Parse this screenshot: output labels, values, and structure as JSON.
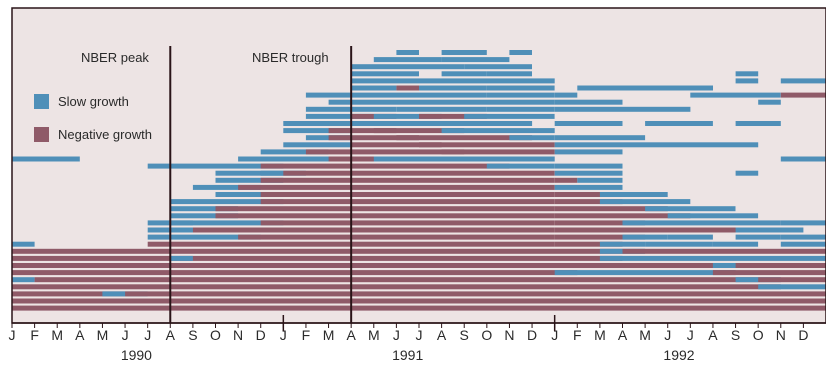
{
  "chart_data": {
    "type": "heatmap",
    "colors": {
      "background": "#ede4e4",
      "slow_growth": "#4f8fb8",
      "negative_growth": "#8f5a68",
      "lines": "#2a1418"
    },
    "legend": [
      {
        "key": "slow",
        "label": "Slow growth"
      },
      {
        "key": "negative",
        "label": "Negative growth"
      }
    ],
    "legend_position": "top-left",
    "annotations": [
      {
        "label": "NBER peak",
        "month": "1990-07"
      },
      {
        "label": "NBER trough",
        "month": "1991-03"
      }
    ],
    "month_ticks": [
      "J",
      "F",
      "M",
      "A",
      "M",
      "J",
      "J",
      "A",
      "S",
      "O",
      "N",
      "D",
      "J",
      "F",
      "M",
      "A",
      "M",
      "J",
      "J",
      "A",
      "S",
      "O",
      "N",
      "D",
      "J",
      "F",
      "M",
      "A",
      "M",
      "J",
      "J",
      "A",
      "S",
      "O",
      "N",
      "D"
    ],
    "year_labels": [
      {
        "label": "1990",
        "month": "1990-06"
      },
      {
        "label": "1991",
        "month": "1991-06"
      },
      {
        "label": "1992",
        "month": "1992-06"
      }
    ],
    "x_range": [
      "1990-01",
      "1992-12"
    ],
    "rows": [
      {
        "segments": [
          [
            "slow",
            "1991-06",
            "1991-06"
          ],
          [
            "slow",
            "1991-08",
            "1991-09"
          ],
          [
            "slow",
            "1991-11",
            "1991-11"
          ]
        ]
      },
      {
        "segments": [
          [
            "slow",
            "1991-05",
            "1991-07"
          ],
          [
            "slow",
            "1991-08",
            "1991-10"
          ]
        ]
      },
      {
        "segments": [
          [
            "slow",
            "1991-04",
            "1991-06"
          ],
          [
            "slow",
            "1991-07",
            "1991-08"
          ],
          [
            "slow",
            "1991-09",
            "1991-11"
          ]
        ]
      },
      {
        "segments": [
          [
            "slow",
            "1991-04",
            "1991-06"
          ],
          [
            "slow",
            "1991-08",
            "1991-09"
          ],
          [
            "slow",
            "1991-10",
            "1991-11"
          ],
          [
            "slow",
            "1992-09",
            "1992-09"
          ]
        ]
      },
      {
        "segments": [
          [
            "slow",
            "1991-04",
            "1991-06"
          ],
          [
            "slow",
            "1991-07",
            "1991-12"
          ],
          [
            "slow",
            "1992-09",
            "1992-09"
          ],
          [
            "slow",
            "1992-11",
            "1992-12"
          ]
        ]
      },
      {
        "segments": [
          [
            "slow",
            "1991-04",
            "1991-05"
          ],
          [
            "negative",
            "1991-06",
            "1991-06"
          ],
          [
            "slow",
            "1991-07",
            "1991-09"
          ],
          [
            "slow",
            "1991-10",
            "1991-12"
          ],
          [
            "slow",
            "1992-02",
            "1992-07"
          ]
        ]
      },
      {
        "segments": [
          [
            "slow",
            "1991-02",
            "1991-06"
          ],
          [
            "slow",
            "1991-07",
            "1991-09"
          ],
          [
            "slow",
            "1991-10",
            "1991-12"
          ],
          [
            "slow",
            "1992-01",
            "1992-01"
          ],
          [
            "slow",
            "1992-07",
            "1992-10"
          ],
          [
            "negative",
            "1992-11",
            "1992-12"
          ]
        ]
      },
      {
        "segments": [
          [
            "slow",
            "1991-03",
            "1991-06"
          ],
          [
            "slow",
            "1991-07",
            "1991-12"
          ],
          [
            "slow",
            "1992-01",
            "1992-03"
          ],
          [
            "slow",
            "1992-10",
            "1992-10"
          ]
        ]
      },
      {
        "segments": [
          [
            "slow",
            "1991-02",
            "1991-05"
          ],
          [
            "slow",
            "1991-06",
            "1991-09"
          ],
          [
            "slow",
            "1991-10",
            "1991-12"
          ],
          [
            "slow",
            "1992-01",
            "1992-06"
          ]
        ]
      },
      {
        "segments": [
          [
            "slow",
            "1991-02",
            "1991-04"
          ],
          [
            "negative",
            "1991-04",
            "1991-05"
          ],
          [
            "slow",
            "1991-05",
            "1991-07"
          ],
          [
            "negative",
            "1991-07",
            "1991-09"
          ],
          [
            "slow",
            "1991-09",
            "1991-12"
          ]
        ]
      },
      {
        "segments": [
          [
            "slow",
            "1991-01",
            "1991-03"
          ],
          [
            "slow",
            "1991-03",
            "1991-06"
          ],
          [
            "slow",
            "1991-06",
            "1991-11"
          ],
          [
            "slow",
            "1992-01",
            "1992-03"
          ],
          [
            "slow",
            "1992-05",
            "1992-07"
          ],
          [
            "slow",
            "1992-09",
            "1992-10"
          ]
        ]
      },
      {
        "segments": [
          [
            "slow",
            "1991-01",
            "1991-03"
          ],
          [
            "negative",
            "1991-03",
            "1991-05"
          ],
          [
            "negative",
            "1991-05",
            "1991-08"
          ],
          [
            "slow",
            "1991-08",
            "1991-12"
          ]
        ]
      },
      {
        "segments": [
          [
            "slow",
            "1991-02",
            "1991-03"
          ],
          [
            "negative",
            "1991-03",
            "1991-06"
          ],
          [
            "negative",
            "1991-06",
            "1991-11"
          ],
          [
            "slow",
            "1991-11",
            "1991-12"
          ],
          [
            "slow",
            "1992-01",
            "1992-04"
          ]
        ]
      },
      {
        "segments": [
          [
            "slow",
            "1991-01",
            "1991-03"
          ],
          [
            "negative",
            "1991-04",
            "1991-07"
          ],
          [
            "negative",
            "1991-07",
            "1991-12"
          ],
          [
            "slow",
            "1992-01",
            "1992-09"
          ]
        ]
      },
      {
        "segments": [
          [
            "slow",
            "1990-12",
            "1991-02"
          ],
          [
            "negative",
            "1991-02",
            "1991-08"
          ],
          [
            "negative",
            "1991-08",
            "1991-12"
          ],
          [
            "slow",
            "1992-01",
            "1992-03"
          ]
        ]
      },
      {
        "segments": [
          [
            "slow",
            "1990-01",
            "1990-03"
          ],
          [
            "slow",
            "1990-11",
            "1991-03"
          ],
          [
            "negative",
            "1991-03",
            "1991-05"
          ],
          [
            "slow",
            "1991-05",
            "1991-12"
          ],
          [
            "slow",
            "1992-11",
            "1992-12"
          ]
        ]
      },
      {
        "segments": [
          [
            "slow",
            "1990-07",
            "1990-12"
          ],
          [
            "negative",
            "1990-12",
            "1991-10"
          ],
          [
            "slow",
            "1991-10",
            "1991-12"
          ],
          [
            "slow",
            "1992-01",
            "1992-03"
          ]
        ]
      },
      {
        "segments": [
          [
            "slow",
            "1990-10",
            "1990-12"
          ],
          [
            "slow",
            "1990-12",
            "1991-01"
          ],
          [
            "negative",
            "1991-01",
            "1991-12"
          ],
          [
            "slow",
            "1992-01",
            "1992-03"
          ],
          [
            "slow",
            "1992-09",
            "1992-09"
          ]
        ]
      },
      {
        "segments": [
          [
            "slow",
            "1990-10",
            "1990-12"
          ],
          [
            "negative",
            "1990-12",
            "1991-12"
          ],
          [
            "negative",
            "1992-01",
            "1992-01"
          ],
          [
            "slow",
            "1992-02",
            "1992-03"
          ]
        ]
      },
      {
        "segments": [
          [
            "slow",
            "1990-09",
            "1990-11"
          ],
          [
            "negative",
            "1990-11",
            "1991-12"
          ],
          [
            "slow",
            "1992-01",
            "1992-03"
          ]
        ]
      },
      {
        "segments": [
          [
            "slow",
            "1990-10",
            "1990-12"
          ],
          [
            "negative",
            "1990-12",
            "1991-12"
          ],
          [
            "negative",
            "1992-01",
            "1992-03"
          ],
          [
            "slow",
            "1992-03",
            "1992-05"
          ]
        ]
      },
      {
        "segments": [
          [
            "slow",
            "1990-08",
            "1990-12"
          ],
          [
            "negative",
            "1990-12",
            "1991-12"
          ],
          [
            "negative",
            "1992-01",
            "1992-03"
          ],
          [
            "slow",
            "1992-03",
            "1992-06"
          ]
        ]
      },
      {
        "segments": [
          [
            "slow",
            "1990-08",
            "1990-10"
          ],
          [
            "negative",
            "1990-10",
            "1991-12"
          ],
          [
            "negative",
            "1992-01",
            "1992-05"
          ],
          [
            "slow",
            "1992-05",
            "1992-08"
          ]
        ]
      },
      {
        "segments": [
          [
            "slow",
            "1990-08",
            "1990-10"
          ],
          [
            "negative",
            "1990-10",
            "1991-12"
          ],
          [
            "negative",
            "1992-01",
            "1992-06"
          ],
          [
            "slow",
            "1992-06",
            "1992-09"
          ]
        ]
      },
      {
        "segments": [
          [
            "slow",
            "1990-07",
            "1990-08"
          ],
          [
            "slow",
            "1990-08",
            "1990-12"
          ],
          [
            "negative",
            "1990-12",
            "1991-12"
          ],
          [
            "negative",
            "1992-01",
            "1992-04"
          ],
          [
            "slow",
            "1992-04",
            "1992-10"
          ],
          [
            "slow",
            "1992-11",
            "1992-12"
          ]
        ]
      },
      {
        "segments": [
          [
            "slow",
            "1990-07",
            "1990-09"
          ],
          [
            "negative",
            "1990-09",
            "1991-12"
          ],
          [
            "negative",
            "1992-01",
            "1992-09"
          ],
          [
            "slow",
            "1992-09",
            "1992-11"
          ]
        ]
      },
      {
        "segments": [
          [
            "slow",
            "1990-07",
            "1990-11"
          ],
          [
            "negative",
            "1990-11",
            "1991-12"
          ],
          [
            "negative",
            "1992-01",
            "1992-04"
          ],
          [
            "slow",
            "1992-04",
            "1992-05"
          ],
          [
            "slow",
            "1992-06",
            "1992-07"
          ],
          [
            "slow",
            "1992-09",
            "1992-10"
          ],
          [
            "slow",
            "1992-11",
            "1992-12"
          ]
        ]
      },
      {
        "segments": [
          [
            "slow",
            "1990-01",
            "1990-01"
          ],
          [
            "negative",
            "1990-07",
            "1991-12"
          ],
          [
            "negative",
            "1992-01",
            "1992-03"
          ],
          [
            "slow",
            "1992-03",
            "1992-04"
          ],
          [
            "slow",
            "1992-05",
            "1992-07"
          ],
          [
            "slow",
            "1992-08",
            "1992-09"
          ],
          [
            "slow",
            "1992-11",
            "1992-12"
          ]
        ]
      },
      {
        "segments": [
          [
            "negative",
            "1990-01",
            "1992-03"
          ],
          [
            "slow",
            "1992-03",
            "1992-04"
          ],
          [
            "negative",
            "1992-04",
            "1992-12"
          ]
        ]
      },
      {
        "segments": [
          [
            "negative",
            "1990-01",
            "1990-08"
          ],
          [
            "slow",
            "1990-08",
            "1990-08"
          ],
          [
            "negative",
            "1990-09",
            "1992-03"
          ],
          [
            "slow",
            "1992-03",
            "1992-12"
          ]
        ]
      },
      {
        "segments": [
          [
            "negative",
            "1990-01",
            "1992-08"
          ],
          [
            "slow",
            "1992-08",
            "1992-09"
          ],
          [
            "negative",
            "1992-09",
            "1992-12"
          ]
        ]
      },
      {
        "segments": [
          [
            "negative",
            "1990-01",
            "1992-01"
          ],
          [
            "slow",
            "1992-01",
            "1992-08"
          ],
          [
            "negative",
            "1992-08",
            "1992-12"
          ]
        ]
      },
      {
        "segments": [
          [
            "slow",
            "1990-01",
            "1990-01"
          ],
          [
            "negative",
            "1990-02",
            "1992-09"
          ],
          [
            "slow",
            "1992-09",
            "1992-10"
          ],
          [
            "negative",
            "1992-10",
            "1992-12"
          ]
        ]
      },
      {
        "segments": [
          [
            "negative",
            "1990-01",
            "1992-10"
          ],
          [
            "slow",
            "1992-10",
            "1992-12"
          ]
        ]
      },
      {
        "segments": [
          [
            "negative",
            "1990-01",
            "1990-05"
          ],
          [
            "slow",
            "1990-05",
            "1990-06"
          ],
          [
            "negative",
            "1990-06",
            "1992-12"
          ]
        ]
      },
      {
        "segments": [
          [
            "negative",
            "1990-01",
            "1992-12"
          ]
        ]
      },
      {
        "segments": [
          [
            "negative",
            "1990-01",
            "1992-12"
          ]
        ]
      }
    ]
  }
}
